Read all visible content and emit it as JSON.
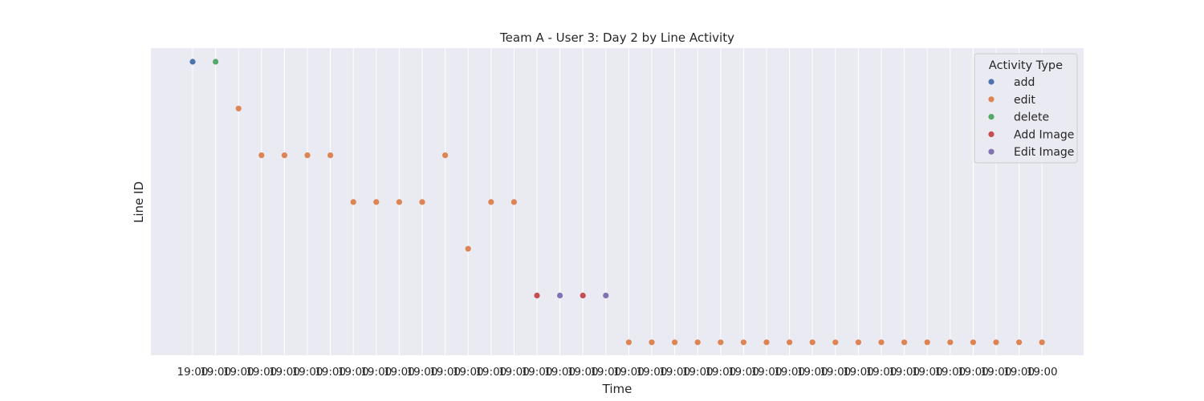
{
  "chart_data": {
    "type": "scatter",
    "title": "Team A - User 3: Day 2 by Line Activity",
    "xlabel": "Time",
    "ylabel": "Line ID",
    "x_tick_label": "19:00",
    "x_count": 38,
    "grid": true,
    "y_ticks_shown": false,
    "legend": {
      "title": "Activity Type",
      "placement": "top-right",
      "entries": [
        {
          "name": "add",
          "color": "#4c72b0"
        },
        {
          "name": "edit",
          "color": "#dd8452"
        },
        {
          "name": "delete",
          "color": "#55a868"
        },
        {
          "name": "Add Image",
          "color": "#c44e52"
        },
        {
          "name": "Edit Image",
          "color": "#8172b3"
        }
      ]
    },
    "y_levels": 7,
    "points": [
      {
        "x": 0,
        "y": 0,
        "type": "add"
      },
      {
        "x": 1,
        "y": 0,
        "type": "delete"
      },
      {
        "x": 2,
        "y": 1,
        "type": "edit"
      },
      {
        "x": 3,
        "y": 2,
        "type": "edit"
      },
      {
        "x": 4,
        "y": 2,
        "type": "edit"
      },
      {
        "x": 5,
        "y": 2,
        "type": "edit"
      },
      {
        "x": 6,
        "y": 2,
        "type": "edit"
      },
      {
        "x": 7,
        "y": 3,
        "type": "edit"
      },
      {
        "x": 8,
        "y": 3,
        "type": "edit"
      },
      {
        "x": 9,
        "y": 3,
        "type": "edit"
      },
      {
        "x": 10,
        "y": 3,
        "type": "edit"
      },
      {
        "x": 11,
        "y": 2,
        "type": "edit"
      },
      {
        "x": 12,
        "y": 4,
        "type": "edit"
      },
      {
        "x": 13,
        "y": 3,
        "type": "edit"
      },
      {
        "x": 14,
        "y": 3,
        "type": "edit"
      },
      {
        "x": 15,
        "y": 5,
        "type": "Add Image"
      },
      {
        "x": 16,
        "y": 5,
        "type": "Edit Image"
      },
      {
        "x": 17,
        "y": 5,
        "type": "Add Image"
      },
      {
        "x": 18,
        "y": 5,
        "type": "Edit Image"
      },
      {
        "x": 19,
        "y": 6,
        "type": "edit"
      },
      {
        "x": 20,
        "y": 6,
        "type": "edit"
      },
      {
        "x": 21,
        "y": 6,
        "type": "edit"
      },
      {
        "x": 22,
        "y": 6,
        "type": "edit"
      },
      {
        "x": 23,
        "y": 6,
        "type": "edit"
      },
      {
        "x": 24,
        "y": 6,
        "type": "edit"
      },
      {
        "x": 25,
        "y": 6,
        "type": "edit"
      },
      {
        "x": 26,
        "y": 6,
        "type": "edit"
      },
      {
        "x": 27,
        "y": 6,
        "type": "edit"
      },
      {
        "x": 28,
        "y": 6,
        "type": "edit"
      },
      {
        "x": 29,
        "y": 6,
        "type": "edit"
      },
      {
        "x": 30,
        "y": 6,
        "type": "edit"
      },
      {
        "x": 31,
        "y": 6,
        "type": "edit"
      },
      {
        "x": 32,
        "y": 6,
        "type": "edit"
      },
      {
        "x": 33,
        "y": 6,
        "type": "edit"
      },
      {
        "x": 34,
        "y": 6,
        "type": "edit"
      },
      {
        "x": 35,
        "y": 6,
        "type": "edit"
      },
      {
        "x": 36,
        "y": 6,
        "type": "edit"
      },
      {
        "x": 37,
        "y": 6,
        "type": "edit"
      }
    ]
  }
}
